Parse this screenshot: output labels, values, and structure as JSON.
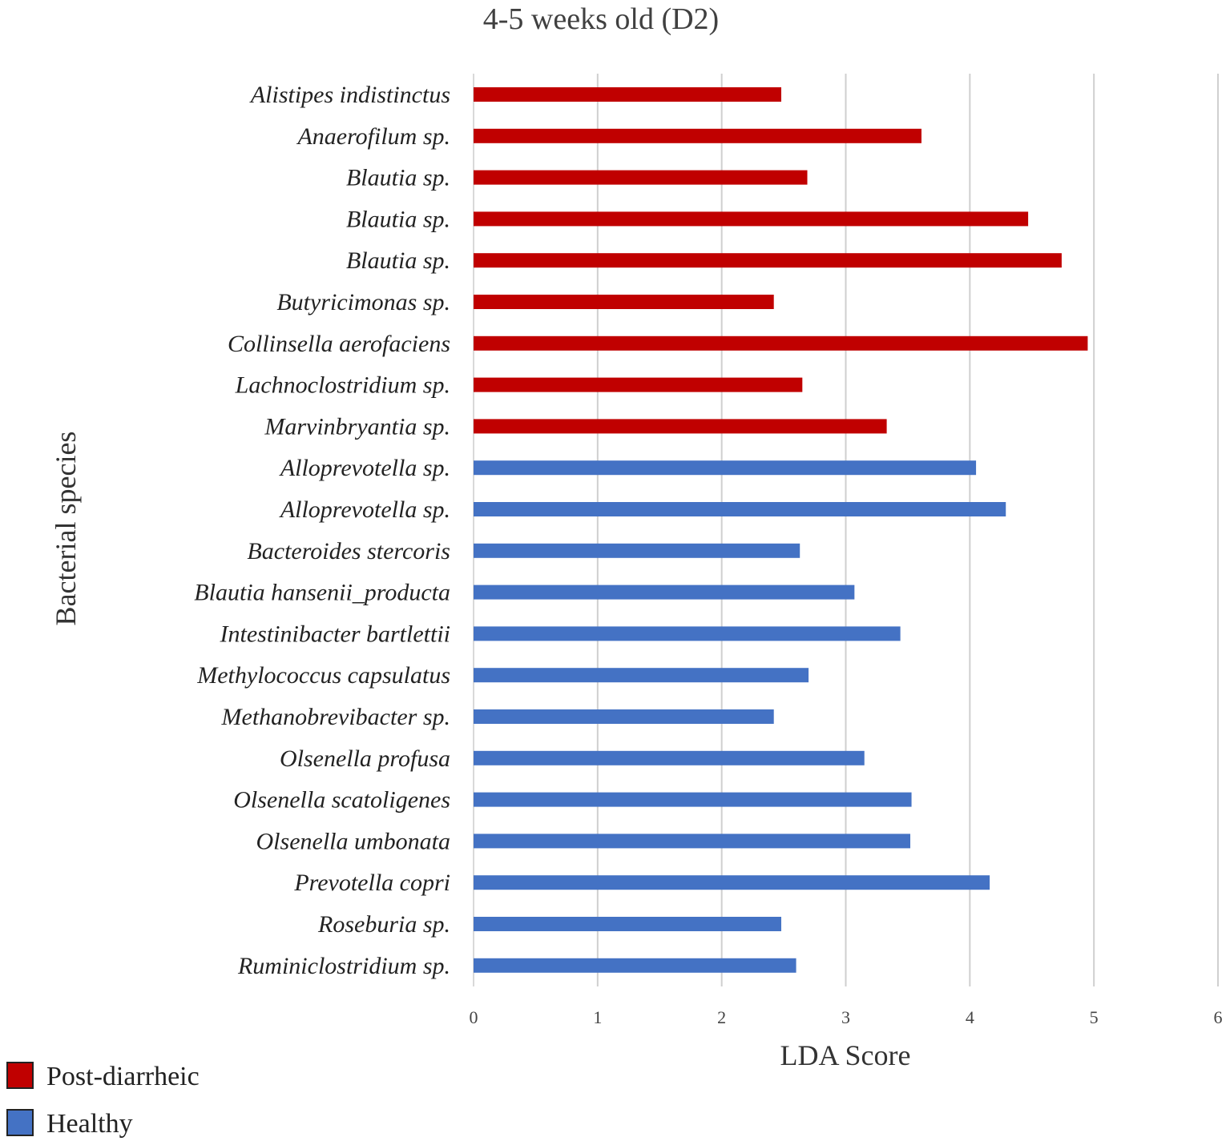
{
  "chart_data": {
    "type": "bar",
    "orientation": "horizontal",
    "title": "4-5 weeks old (D2)",
    "xlabel": "LDA Score",
    "ylabel": "Bacterial species",
    "xlim": [
      0,
      6
    ],
    "xticks": [
      "0",
      "1",
      "2",
      "3",
      "4",
      "5",
      "6"
    ],
    "grid": true,
    "legend_position": "bottom-left",
    "series": [
      {
        "name": "Post-diarrheic",
        "color": "#c00000"
      },
      {
        "name": "Healthy",
        "color": "#4472c4"
      }
    ],
    "categories": [
      {
        "label": "Alistipes indistinctus",
        "value": 2.48,
        "series": "Post-diarrheic"
      },
      {
        "label": "Anaerofilum sp.",
        "value": 3.61,
        "series": "Post-diarrheic"
      },
      {
        "label": "Blautia sp.",
        "value": 2.69,
        "series": "Post-diarrheic"
      },
      {
        "label": "Blautia sp.",
        "value": 4.47,
        "series": "Post-diarrheic"
      },
      {
        "label": "Blautia sp.",
        "value": 4.74,
        "series": "Post-diarrheic"
      },
      {
        "label": "Butyricimonas sp.",
        "value": 2.42,
        "series": "Post-diarrheic"
      },
      {
        "label": "Collinsella aerofaciens",
        "value": 4.95,
        "series": "Post-diarrheic"
      },
      {
        "label": "Lachnoclostridium sp.",
        "value": 2.65,
        "series": "Post-diarrheic"
      },
      {
        "label": "Marvinbryantia sp.",
        "value": 3.33,
        "series": "Post-diarrheic"
      },
      {
        "label": "Alloprevotella sp.",
        "value": 4.05,
        "series": "Healthy"
      },
      {
        "label": "Alloprevotella sp.",
        "value": 4.29,
        "series": "Healthy"
      },
      {
        "label": "Bacteroides stercoris",
        "value": 2.63,
        "series": "Healthy"
      },
      {
        "label": "Blautia hansenii_producta",
        "value": 3.07,
        "series": "Healthy"
      },
      {
        "label": "Intestinibacter bartlettii",
        "value": 3.44,
        "series": "Healthy"
      },
      {
        "label": "Methylococcus capsulatus",
        "value": 2.7,
        "series": "Healthy"
      },
      {
        "label": "Methanobrevibacter sp.",
        "value": 2.42,
        "series": "Healthy"
      },
      {
        "label": "Olsenella profusa",
        "value": 3.15,
        "series": "Healthy"
      },
      {
        "label": "Olsenella scatoligenes",
        "value": 3.53,
        "series": "Healthy"
      },
      {
        "label": "Olsenella umbonata",
        "value": 3.52,
        "series": "Healthy"
      },
      {
        "label": "Prevotella copri",
        "value": 4.16,
        "series": "Healthy"
      },
      {
        "label": "Roseburia sp.",
        "value": 2.48,
        "series": "Healthy"
      },
      {
        "label": "Ruminiclostridium sp.",
        "value": 2.6,
        "series": "Healthy"
      }
    ]
  }
}
